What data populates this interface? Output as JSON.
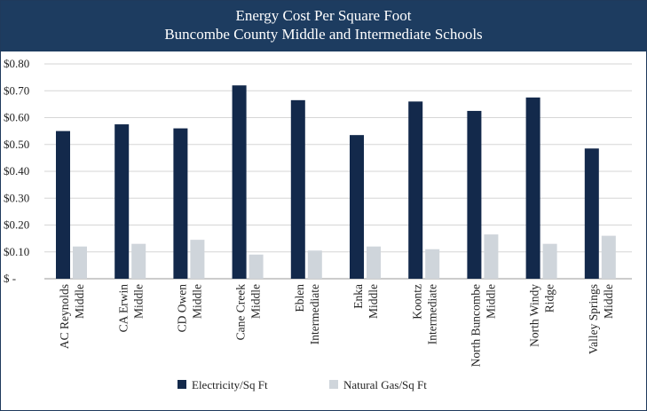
{
  "chart_data": {
    "type": "bar",
    "title": "Energy Cost Per Square Foot",
    "subtitle": "Buncombe County Middle and Intermediate Schools",
    "categories": [
      [
        "AC Reynolds",
        "Middle"
      ],
      [
        "CA Erwin",
        "Middle"
      ],
      [
        "CD Owen",
        "Middle"
      ],
      [
        "Cane Creek",
        "Middle"
      ],
      [
        "Eblen",
        "Intermediate"
      ],
      [
        "Enka",
        "Middle"
      ],
      [
        "Koontz",
        "Intermediate"
      ],
      [
        "North Buncombe",
        "Middle"
      ],
      [
        "North Windy",
        "Ridge"
      ],
      [
        "Valley Springs",
        "Middle"
      ]
    ],
    "series": [
      {
        "name": "Electricity/Sq Ft",
        "color": "#13294b",
        "values": [
          0.55,
          0.575,
          0.56,
          0.72,
          0.665,
          0.535,
          0.66,
          0.625,
          0.675,
          0.485
        ]
      },
      {
        "name": "Natural Gas/Sq Ft",
        "color": "#cfd5db",
        "values": [
          0.12,
          0.13,
          0.145,
          0.09,
          0.105,
          0.12,
          0.11,
          0.165,
          0.13,
          0.16
        ]
      }
    ],
    "ylim": [
      0,
      0.8
    ],
    "yticks": [
      0,
      0.1,
      0.2,
      0.3,
      0.4,
      0.5,
      0.6,
      0.7,
      0.8
    ],
    "ytick_labels": [
      "$ -",
      "$0.10",
      "$0.20",
      "$0.30",
      "$0.40",
      "$0.50",
      "$0.60",
      "$0.70",
      "$0.80"
    ],
    "grid": true,
    "legend": "bottom"
  }
}
